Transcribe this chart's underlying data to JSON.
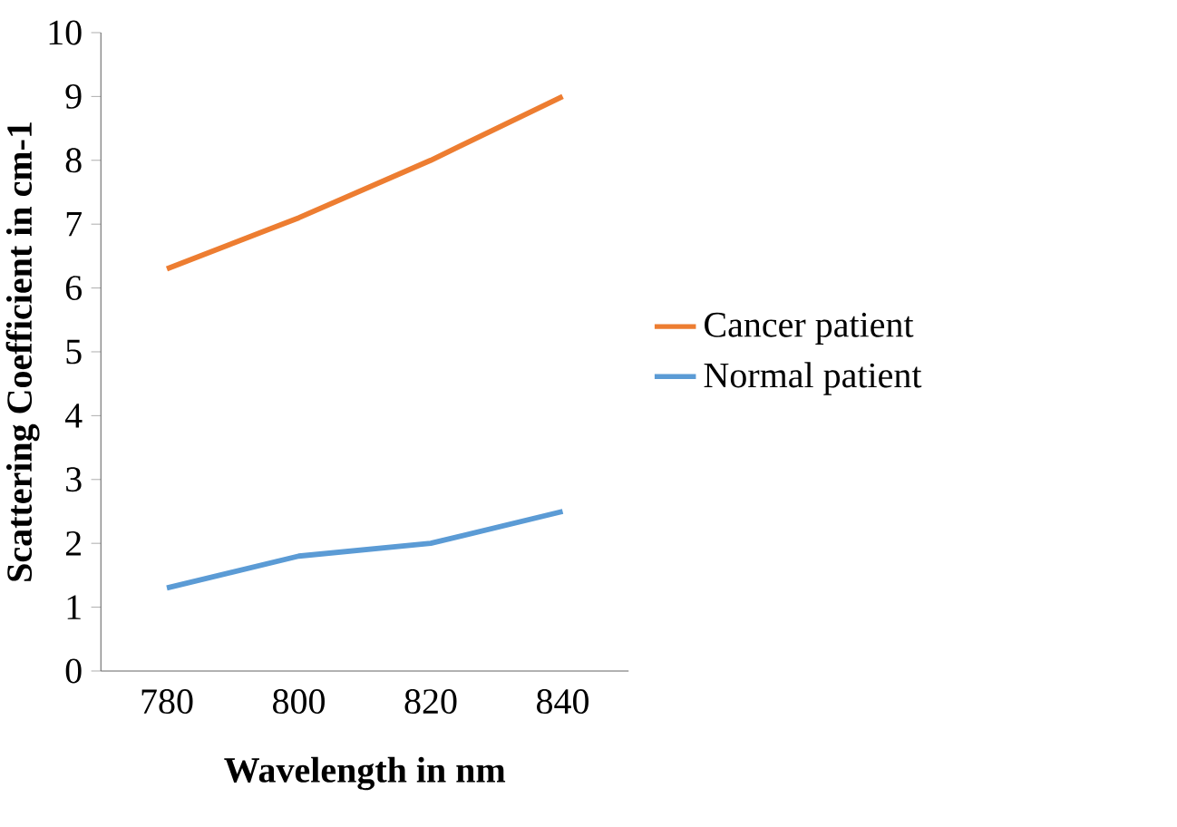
{
  "chart_data": {
    "type": "line",
    "xlabel": "Wavelength in nm",
    "ylabel": "Scattering Coefficient in cm-1",
    "categories": [
      "780",
      "800",
      "820",
      "840"
    ],
    "series": [
      {
        "name": "Cancer patient",
        "color": "#ed7d31",
        "values": [
          6.3,
          7.1,
          8.0,
          9.0
        ]
      },
      {
        "name": "Normal patient",
        "color": "#5b9bd5",
        "values": [
          1.3,
          1.8,
          2.0,
          2.5
        ]
      }
    ],
    "ylim": [
      0,
      10
    ],
    "yticks": [
      0,
      1,
      2,
      3,
      4,
      5,
      6,
      7,
      8,
      9,
      10
    ],
    "grid": false,
    "legend": "right",
    "marker": "none",
    "line_style": "solid"
  }
}
